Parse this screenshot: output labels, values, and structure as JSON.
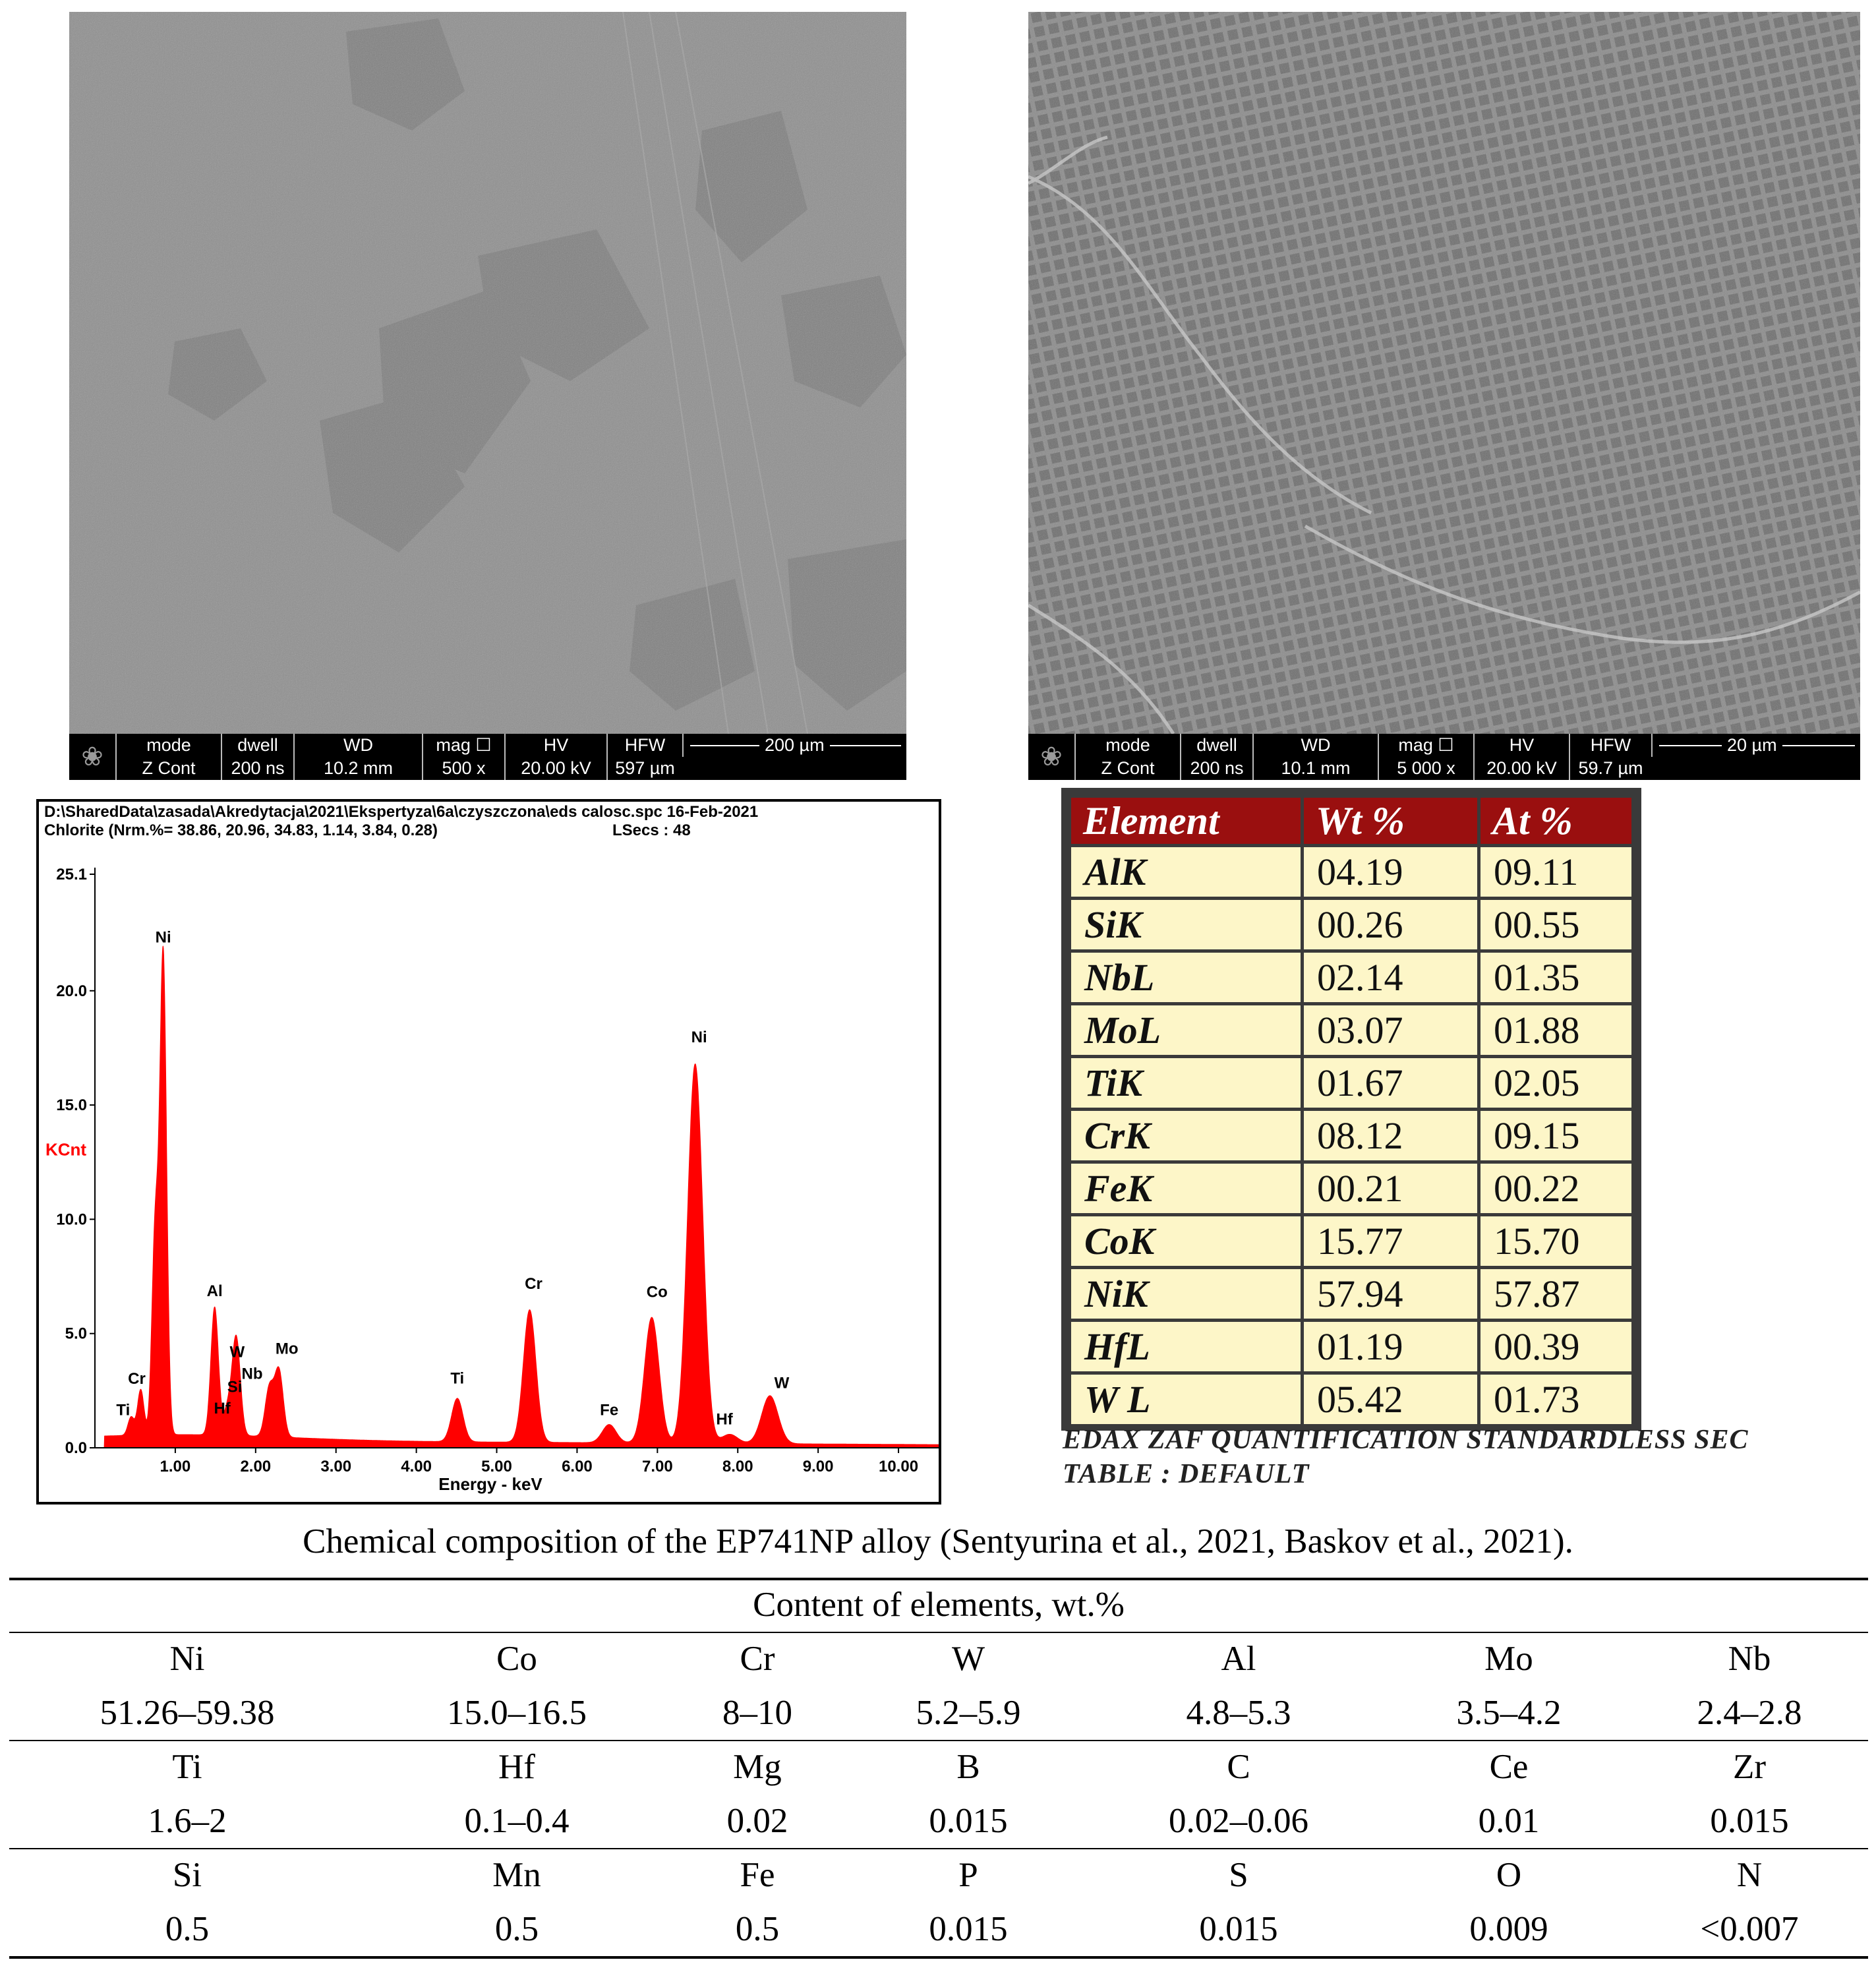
{
  "sem_panels": [
    {
      "labels": {
        "mode": "mode",
        "dwell": "dwell",
        "wd": "WD",
        "mag": "mag ☐",
        "hv": "HV",
        "hfw": "HFW"
      },
      "values": {
        "mode": "Z Cont",
        "dwell": "200 ns",
        "wd": "10.2 mm",
        "mag": "500 x",
        "hv": "20.00 kV",
        "hfw": "597 µm"
      },
      "scale": "200 µm"
    },
    {
      "labels": {
        "mode": "mode",
        "dwell": "dwell",
        "wd": "WD",
        "mag": "mag ☐",
        "hv": "HV",
        "hfw": "HFW"
      },
      "values": {
        "mode": "Z Cont",
        "dwell": "200 ns",
        "wd": "10.1 mm",
        "mag": "5 000 x",
        "hv": "20.00 kV",
        "hfw": "59.7 µm"
      },
      "scale": "20 µm"
    }
  ],
  "spectrum": {
    "path_line": "D:\\SharedData\\zasada\\Akredytacja\\2021\\Ekspertyza\\6a\\czyszczona\\eds calosc.spc  16-Feb-2021",
    "info_line": "Chlorite (Nrm.%= 38.86, 20.96, 34.83, 1.14, 3.84, 0.28)",
    "lsecs": "LSecs :  48",
    "color": "#ff0000"
  },
  "chart_data": {
    "type": "line",
    "title": "",
    "xlabel": "Energy - keV",
    "ylabel": "KCnt",
    "xlim": [
      0,
      10.5
    ],
    "ylim": [
      0,
      25.1
    ],
    "x_ticks": [
      "1.00",
      "2.00",
      "3.00",
      "4.00",
      "5.00",
      "6.00",
      "7.00",
      "8.00",
      "9.00",
      "10.00"
    ],
    "y_ticks": [
      "0.0",
      "5.0",
      "10.0",
      "15.0",
      "20.0",
      "25.1"
    ],
    "peaks": [
      {
        "label": "Ti",
        "x": 0.45,
        "y": 1.2
      },
      {
        "label": "Cr",
        "x": 0.57,
        "y": 2.4
      },
      {
        "label": "",
        "x": 0.75,
        "y": 9.3
      },
      {
        "label": "Ni",
        "x": 0.85,
        "y": 21.3
      },
      {
        "label": "Al",
        "x": 1.49,
        "y": 6.0
      },
      {
        "label": "W",
        "x": 1.77,
        "y": 3.1
      },
      {
        "label": "Si",
        "x": 1.74,
        "y": 2.2
      },
      {
        "label": "Hf",
        "x": 1.65,
        "y": 1.5
      },
      {
        "label": "Nb",
        "x": 2.17,
        "y": 2.5
      },
      {
        "label": "Mo",
        "x": 2.29,
        "y": 3.3
      },
      {
        "label": "Ti",
        "x": 4.51,
        "y": 2.3
      },
      {
        "label": "Cr",
        "x": 5.41,
        "y": 6.2
      },
      {
        "label": "Fe",
        "x": 6.4,
        "y": 1.2
      },
      {
        "label": "Co",
        "x": 6.93,
        "y": 5.9
      },
      {
        "label": "Ni",
        "x": 7.47,
        "y": 17.0
      },
      {
        "label": "Hf",
        "x": 7.9,
        "y": 0.8
      },
      {
        "label": "W",
        "x": 8.4,
        "y": 2.5
      }
    ]
  },
  "edax": {
    "headers": [
      "Element",
      "Wt %",
      "At %"
    ],
    "rows": [
      [
        "AlK",
        "04.19",
        "09.11"
      ],
      [
        "SiK",
        "00.26",
        "00.55"
      ],
      [
        "NbL",
        "02.14",
        "01.35"
      ],
      [
        "MoL",
        "03.07",
        "01.88"
      ],
      [
        "TiK",
        "01.67",
        "02.05"
      ],
      [
        "CrK",
        "08.12",
        "09.15"
      ],
      [
        "FeK",
        "00.21",
        "00.22"
      ],
      [
        "CoK",
        "15.77",
        "15.70"
      ],
      [
        "NiK",
        "57.94",
        "57.87"
      ],
      [
        "HfL",
        "01.19",
        "00.39"
      ],
      [
        "W L",
        "05.42",
        "01.73"
      ]
    ],
    "note1": "EDAX ZAF QUANTIFICATION   STANDARDLESS  SEC",
    "note2": "TABLE : DEFAULT",
    "header_color": "#9a0f0f",
    "cell_color": "#fdf6c8"
  },
  "composition": {
    "caption": "Chemical composition of the EP741NP alloy (Sentyurina et al., 2021, Baskov et al., 2021).",
    "subheader": "Content of elements, wt.%",
    "rows": [
      [
        "Ni",
        "Co",
        "Cr",
        "W",
        "Al",
        "Mo",
        "Nb"
      ],
      [
        "51.26–59.38",
        "15.0–16.5",
        "8–10",
        "5.2–5.9",
        "4.8–5.3",
        "3.5–4.2",
        "2.4–2.8"
      ],
      [
        "Ti",
        "Hf",
        "Mg",
        "B",
        "C",
        "Ce",
        "Zr"
      ],
      [
        "1.6–2",
        "0.1–0.4",
        "0.02",
        "0.015",
        "0.02–0.06",
        "0.01",
        "0.015"
      ],
      [
        "Si",
        "Mn",
        "Fe",
        "P",
        "S",
        "O",
        "N"
      ],
      [
        "0.5",
        "0.5",
        "0.5",
        "0.015",
        "0.015",
        "0.009",
        "<0.007"
      ]
    ]
  }
}
